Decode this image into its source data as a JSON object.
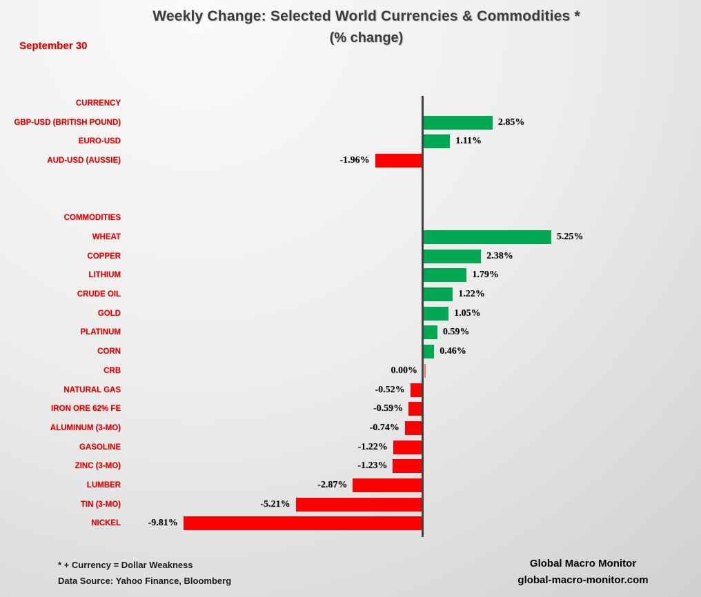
{
  "header": {
    "title": "Weekly Change: Selected World Currencies & Commodities *",
    "subtitle": "(% change)",
    "date_label": "September 30"
  },
  "footer": {
    "note": "* + Currency = Dollar Weakness",
    "source": "Data Source:  Yahoo Finance, Bloomberg",
    "brand_name": "Global Macro Monitor",
    "brand_url": "global-macro-monitor.com"
  },
  "colors": {
    "positive_bar": "#00A651",
    "negative_bar": "#FF0000",
    "label_red": "#E10000",
    "axis": "#404040",
    "value_text": "#000000",
    "title_text": "#3D3D3D"
  },
  "chart_data": {
    "type": "bar",
    "orientation": "horizontal",
    "title": "Weekly Change: Selected World Currencies & Commodities *",
    "subtitle": "(% change)",
    "date": "September 30",
    "unit": "%",
    "grid": false,
    "value_axis_visible": false,
    "category_axis_line": true,
    "rows": [
      {
        "kind": "header",
        "label": "CURRENCY"
      },
      {
        "kind": "bar",
        "label": "GBP-USD (BRITISH POUND)",
        "value": 2.85,
        "display": "2.85%"
      },
      {
        "kind": "bar",
        "label": "EURO-USD",
        "value": 1.11,
        "display": "1.11%"
      },
      {
        "kind": "bar",
        "label": "AUD-USD (AUSSIE)",
        "value": -1.96,
        "display": "-1.96%"
      },
      {
        "kind": "spacer"
      },
      {
        "kind": "spacer"
      },
      {
        "kind": "header",
        "label": "COMMODITIES"
      },
      {
        "kind": "bar",
        "label": "WHEAT",
        "value": 5.25,
        "display": "5.25%"
      },
      {
        "kind": "bar",
        "label": "COPPER",
        "value": 2.38,
        "display": "2.38%"
      },
      {
        "kind": "bar",
        "label": "LITHIUM",
        "value": 1.79,
        "display": "1.79%"
      },
      {
        "kind": "bar",
        "label": "CRUDE OIL",
        "value": 1.22,
        "display": "1.22%"
      },
      {
        "kind": "bar",
        "label": "GOLD",
        "value": 1.05,
        "display": "1.05%"
      },
      {
        "kind": "bar",
        "label": "PLATINUM",
        "value": 0.59,
        "display": "0.59%"
      },
      {
        "kind": "bar",
        "label": "CORN",
        "value": 0.46,
        "display": "0.46%"
      },
      {
        "kind": "bar",
        "label": "CRB",
        "value": 0.0,
        "display": "0.00%"
      },
      {
        "kind": "bar",
        "label": "NATURAL GAS",
        "value": -0.52,
        "display": "-0.52%"
      },
      {
        "kind": "bar",
        "label": "IRON ORE 62% FE",
        "value": -0.59,
        "display": "-0.59%"
      },
      {
        "kind": "bar",
        "label": "ALUMINUM (3-MO)",
        "value": -0.74,
        "display": "-0.74%"
      },
      {
        "kind": "bar",
        "label": "GASOLINE",
        "value": -1.22,
        "display": "-1.22%"
      },
      {
        "kind": "bar",
        "label": "ZINC (3-MO)",
        "value": -1.23,
        "display": "-1.23%"
      },
      {
        "kind": "bar",
        "label": "LUMBER",
        "value": -2.87,
        "display": "-2.87%"
      },
      {
        "kind": "bar",
        "label": "TIN (3-MO)",
        "value": -5.21,
        "display": "-5.21%"
      },
      {
        "kind": "bar",
        "label": "NICKEL",
        "value": -9.81,
        "display": "-9.81%"
      }
    ]
  }
}
